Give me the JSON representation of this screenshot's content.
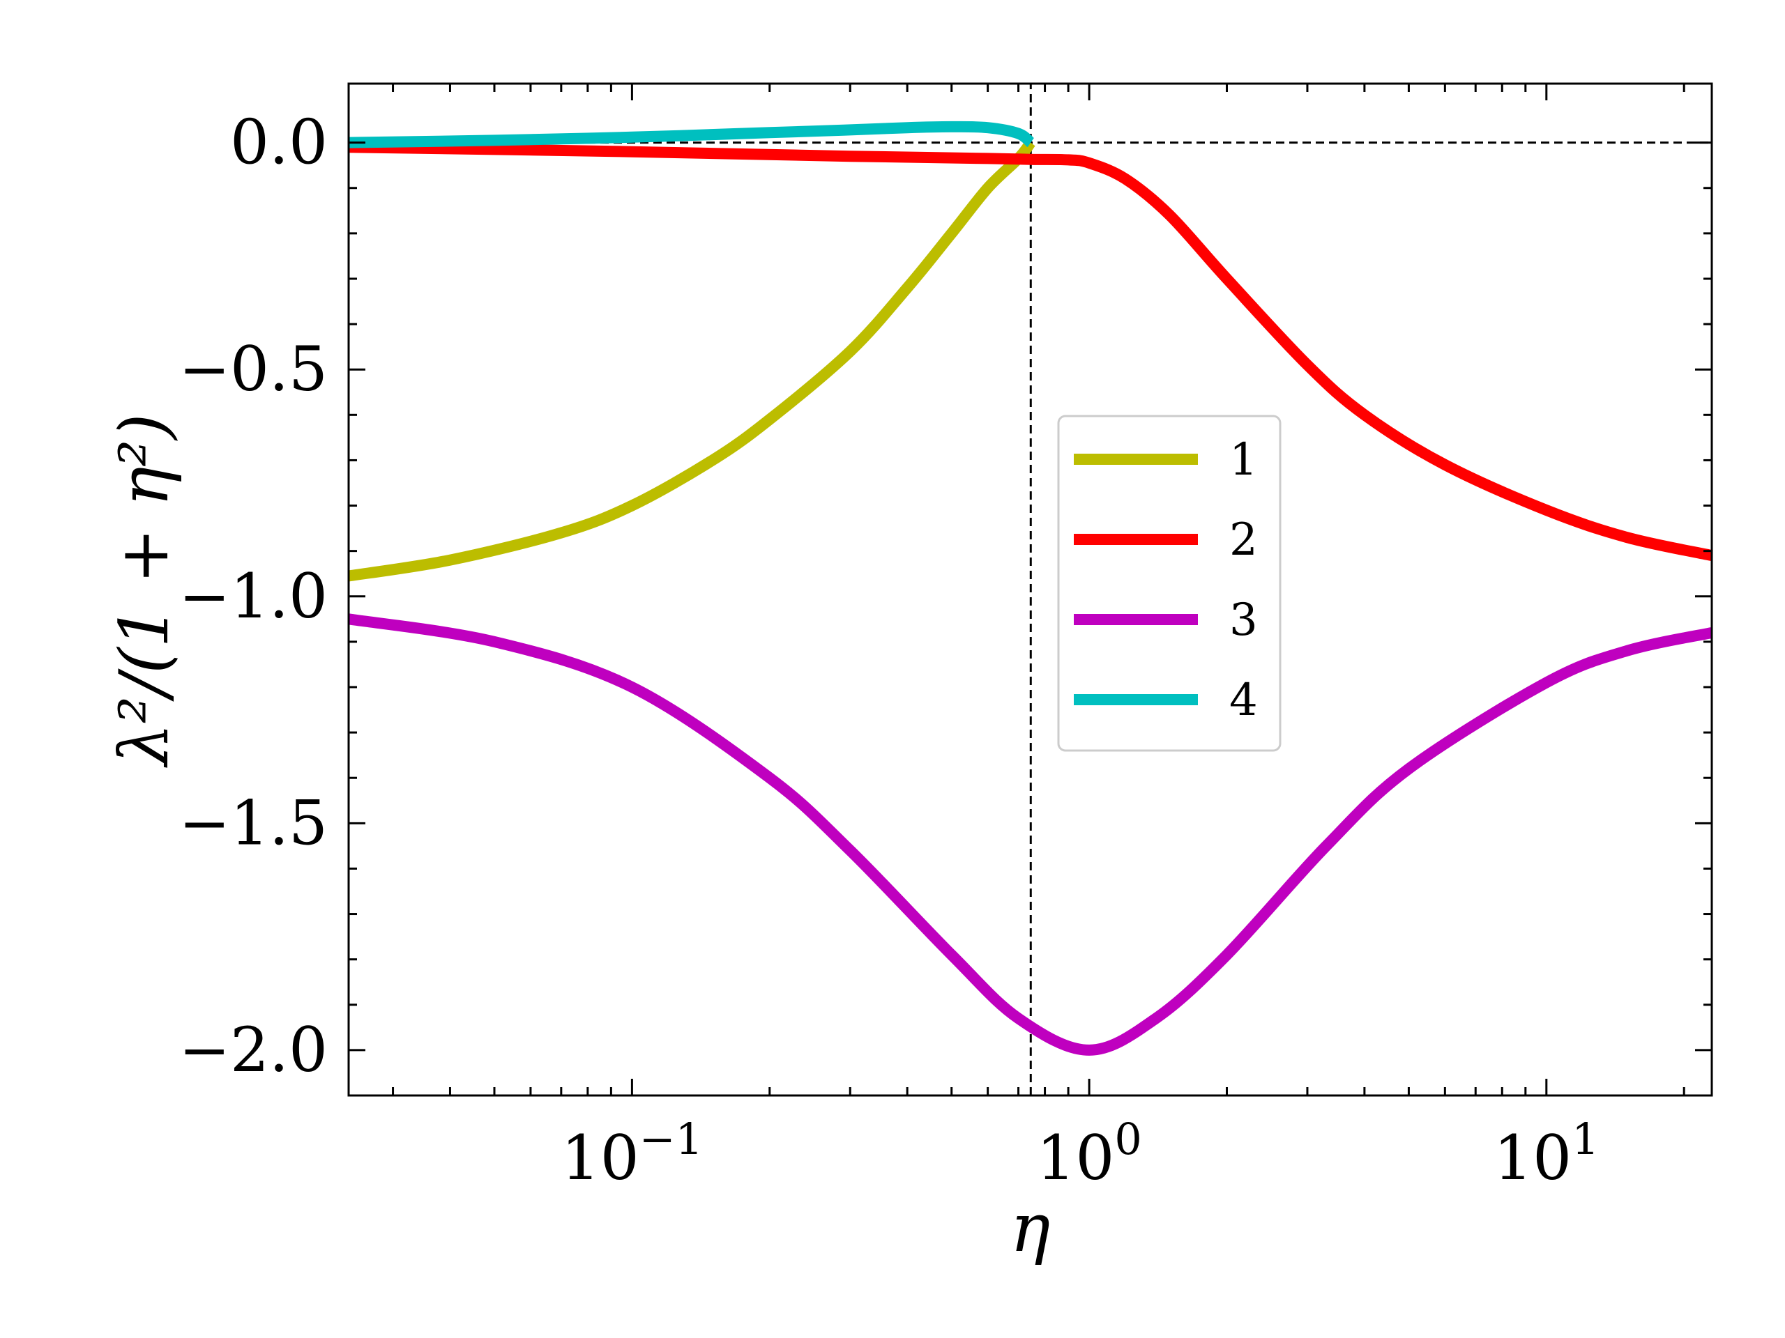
{
  "chart_data": {
    "type": "line",
    "title": "",
    "xlabel": "η",
    "ylabel": "λ²/(1 + η²)",
    "xscale": "log",
    "xlim": [
      0.024,
      23
    ],
    "ylim": [
      -2.1,
      0.13
    ],
    "grid": false,
    "legend_position": "center-right",
    "xticks": [
      {
        "value": 0.1,
        "base": "10",
        "exp": "−1"
      },
      {
        "value": 1,
        "base": "10",
        "exp": "0"
      },
      {
        "value": 10,
        "base": "10",
        "exp": "1"
      }
    ],
    "yticks": [
      {
        "value": 0.0,
        "label": "0.0"
      },
      {
        "value": -0.5,
        "label": "−0.5"
      },
      {
        "value": -1.0,
        "label": "−1.0"
      },
      {
        "value": -1.5,
        "label": "−1.5"
      },
      {
        "value": -2.0,
        "label": "−2.0"
      }
    ],
    "reference_lines": [
      {
        "orientation": "horizontal",
        "value": 0.0,
        "from_x": 0.024,
        "to_x": 23
      },
      {
        "orientation": "vertical",
        "value": 0.745,
        "from_y": -2.1,
        "to_y": 0.13
      }
    ],
    "series": [
      {
        "name": "1",
        "color": "#bcbd00",
        "x": [
          0.024,
          0.04,
          0.07,
          0.1,
          0.15,
          0.2,
          0.3,
          0.4,
          0.5,
          0.6,
          0.7,
          0.745
        ],
        "y": [
          -0.955,
          -0.92,
          -0.86,
          -0.8,
          -0.7,
          -0.61,
          -0.46,
          -0.32,
          -0.2,
          -0.1,
          -0.035,
          0.0
        ]
      },
      {
        "name": "2",
        "color": "#ff0000",
        "x": [
          0.024,
          0.1,
          0.3,
          0.6,
          0.745,
          0.9,
          1.0,
          1.2,
          1.5,
          2.0,
          3.0,
          4.0,
          6.0,
          10.0,
          15.0,
          23.0
        ],
        "y": [
          -0.01,
          -0.02,
          -0.03,
          -0.035,
          -0.037,
          -0.038,
          -0.045,
          -0.08,
          -0.16,
          -0.3,
          -0.49,
          -0.6,
          -0.71,
          -0.81,
          -0.87,
          -0.91
        ]
      },
      {
        "name": "3",
        "color": "#bf00bf",
        "x": [
          0.024,
          0.05,
          0.1,
          0.2,
          0.3,
          0.5,
          0.7,
          1.0,
          1.4,
          2.0,
          3.3,
          5.0,
          10.0,
          15.0,
          23.0
        ],
        "y": [
          -1.05,
          -1.1,
          -1.2,
          -1.4,
          -1.56,
          -1.79,
          -1.93,
          -2.0,
          -1.93,
          -1.79,
          -1.55,
          -1.38,
          -1.19,
          -1.12,
          -1.08
        ]
      },
      {
        "name": "4",
        "color": "#00bfbf",
        "x": [
          0.024,
          0.05,
          0.1,
          0.2,
          0.3,
          0.4,
          0.5,
          0.6,
          0.7,
          0.745
        ],
        "y": [
          0.0,
          0.005,
          0.012,
          0.022,
          0.028,
          0.033,
          0.035,
          0.033,
          0.02,
          0.0
        ]
      }
    ]
  }
}
